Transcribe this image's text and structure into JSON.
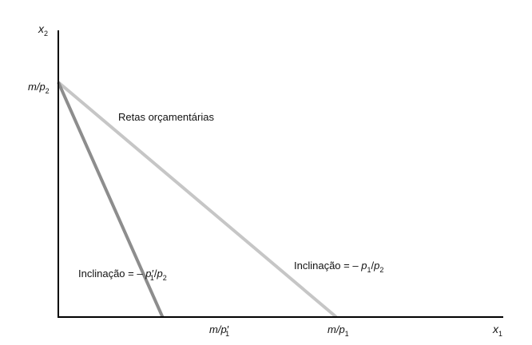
{
  "chart_data": {
    "type": "line",
    "axes": {
      "x_label": "x",
      "x_label_sub": "1",
      "y_label": "x",
      "y_label_sub": "2"
    },
    "y_tick": {
      "main": "m/p",
      "sub": "2"
    },
    "x_ticks": [
      {
        "main": "m/p",
        "prime": "′",
        "sub": "1"
      },
      {
        "main": "m/p",
        "sub": "1"
      }
    ],
    "series": [
      {
        "color": "#c6c6c6",
        "x": [
          0,
          1
        ],
        "y": [
          1,
          0
        ]
      },
      {
        "color": "#8d8d8d",
        "x": [
          0,
          0.375
        ],
        "y": [
          1,
          0
        ]
      }
    ],
    "annotations": {
      "lines_title": "Retas orçamentárias",
      "slope_new": {
        "prefix": "Inclinação = – ",
        "p1": "p",
        "p1_prime": "′",
        "p1_sub": "1",
        "slash": "/",
        "p2": "p",
        "p2_sub": "2"
      },
      "slope_old": {
        "prefix": "Inclinação = – ",
        "p1": "p",
        "p1_sub": "1",
        "slash": "/",
        "p2": "p",
        "p2_sub": "2"
      }
    },
    "xlim": [
      0,
      1.55
    ],
    "ylim": [
      0,
      1.5
    ],
    "grid": false,
    "colors": {
      "axis": "#000000",
      "text": "#111111"
    }
  }
}
